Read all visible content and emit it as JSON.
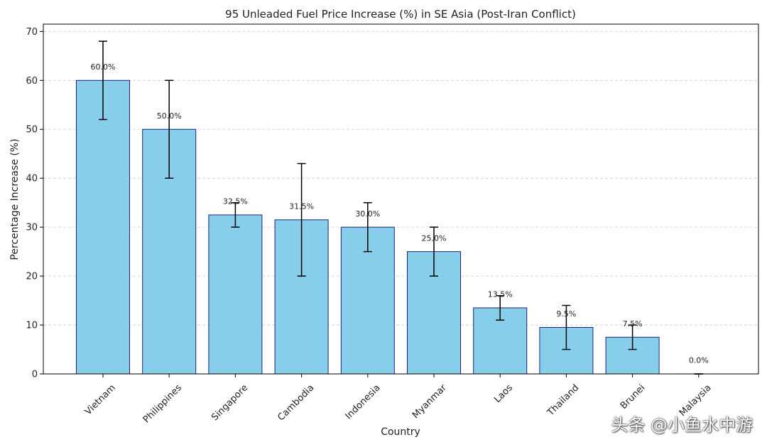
{
  "chart_data": {
    "type": "bar",
    "title": "95 Unleaded Fuel Price Increase (%) in SE Asia (Post-Iran Conflict)",
    "xlabel": "Country",
    "ylabel": "Percentage Increase (%)",
    "ylim": [
      0,
      71.5
    ],
    "yticks": [
      0,
      10,
      20,
      30,
      40,
      50,
      60,
      70
    ],
    "grid": "y-dashed",
    "categories": [
      "Vietnam",
      "Philippines",
      "Singapore",
      "Cambodia",
      "Indonesia",
      "Myanmar",
      "Laos",
      "Thailand",
      "Brunei",
      "Malaysia"
    ],
    "values": [
      60.0,
      50.0,
      32.5,
      31.5,
      30.0,
      25.0,
      13.5,
      9.5,
      7.5,
      0.0
    ],
    "error_low": [
      52,
      40,
      30,
      20,
      25,
      20,
      11,
      5,
      5,
      0
    ],
    "error_high": [
      68,
      60,
      35,
      43,
      35,
      30,
      16,
      14,
      10,
      0
    ],
    "data_labels": [
      "60.0%",
      "50.0%",
      "32.5%",
      "31.5%",
      "30.0%",
      "25.0%",
      "13.5%",
      "9.5%",
      "7.5%",
      "0.0%"
    ],
    "colors": {
      "bar_fill": "#87ceeb",
      "bar_edge": "#1a237e",
      "error_bar": "#000000",
      "grid": "#cccccc"
    }
  },
  "watermark": "头条 @小鱼水中游"
}
